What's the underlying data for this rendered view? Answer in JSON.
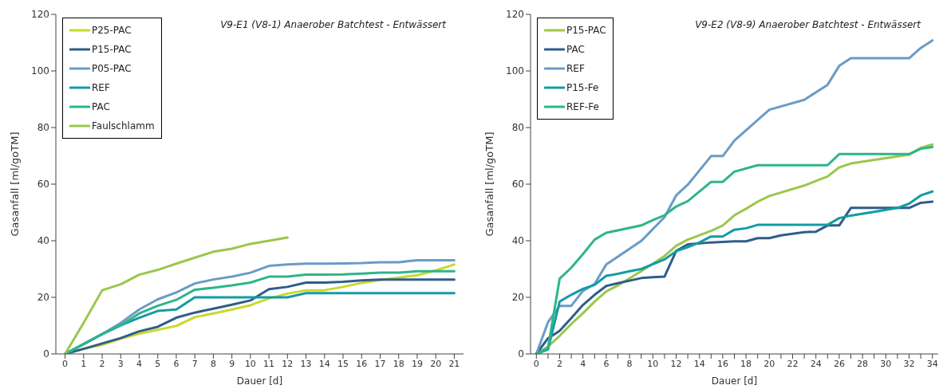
{
  "chart_data": [
    {
      "type": "line",
      "title": "V9-E1 (V8-1) Anaerober Batchtest - Entwässert",
      "xlabel": "Dauer [d]",
      "ylabel": "Gasanfall [ml/goTM]",
      "x": [
        0,
        1,
        2,
        3,
        4,
        5,
        6,
        7,
        8,
        9,
        10,
        11,
        12,
        13,
        14,
        15,
        16,
        17,
        18,
        19,
        20,
        21
      ],
      "xlim": [
        -0.5,
        21.5
      ],
      "xticks": [
        0,
        1,
        2,
        3,
        4,
        5,
        6,
        7,
        8,
        9,
        10,
        11,
        12,
        13,
        14,
        15,
        16,
        17,
        18,
        19,
        20,
        21
      ],
      "ylim": [
        0,
        120
      ],
      "yticks": [
        0,
        20,
        40,
        60,
        80,
        100,
        120
      ],
      "legend": "top left",
      "grid": false,
      "marker": "none",
      "line_style": "solid",
      "series": [
        {
          "name": "P25-PAC",
          "color": "#c9d92b",
          "values": [
            0,
            1.8,
            3.2,
            5.4,
            7.2,
            8.5,
            9.9,
            13,
            14.3,
            15.7,
            17.2,
            19.6,
            21.3,
            22.5,
            22.5,
            23.7,
            25.1,
            26.1,
            27,
            27.8,
            29.5,
            31.6
          ]
        },
        {
          "name": "P15-PAC",
          "color": "#2f5d8a",
          "values": [
            0,
            1.8,
            3.7,
            5.6,
            8,
            9.6,
            12.8,
            14.6,
            16,
            17.4,
            18.9,
            22.9,
            23.7,
            25.2,
            25.2,
            25.5,
            26,
            26.3,
            26.3,
            26.3,
            26.3,
            26.3
          ]
        },
        {
          "name": "P05-PAC",
          "color": "#6b9bc7",
          "values": [
            0,
            3.5,
            7,
            10.9,
            15.7,
            19.3,
            21.7,
            24.9,
            26.3,
            27.3,
            28.7,
            31.1,
            31.6,
            31.9,
            31.9,
            32,
            32.1,
            32.4,
            32.4,
            33.1,
            33.1,
            33.1
          ]
        },
        {
          "name": "REF",
          "color": "#149ba3",
          "values": [
            0,
            3.5,
            7,
            10.1,
            12.8,
            15.2,
            15.7,
            20,
            20,
            20,
            20,
            20,
            20,
            21.5,
            21.5,
            21.5,
            21.5,
            21.5,
            21.5,
            21.5,
            21.5,
            21.5
          ]
        },
        {
          "name": "PAC",
          "color": "#2db58a",
          "values": [
            0,
            3.5,
            7,
            10.1,
            14.3,
            17,
            19.1,
            22.7,
            23.4,
            24.2,
            25.2,
            27.3,
            27.3,
            28,
            28,
            28.1,
            28.4,
            28.7,
            28.7,
            29.2,
            29.2,
            29.2
          ]
        },
        {
          "name": "Faulschlamm",
          "color": "#9bc74b",
          "values": [
            0,
            11,
            22.5,
            24.6,
            28,
            29.7,
            31.9,
            34,
            36.1,
            37.2,
            38.9,
            40,
            41.1,
            null,
            null,
            null,
            null,
            null,
            null,
            null,
            null,
            null
          ]
        }
      ]
    },
    {
      "type": "line",
      "title": "V9-E2 (V8-9) Anaerober Batchtest - Entwässert",
      "xlabel": "Dauer [d]",
      "ylabel": "Gasanfall [ml/goTM]",
      "xlim": [
        -0.5,
        34.5
      ],
      "xticks": [
        0,
        {
          "value": 1,
          "label": null
        },
        2,
        {
          "value": 3,
          "label": null
        },
        4,
        {
          "value": 5,
          "label": null
        },
        6,
        {
          "value": 7,
          "label": null
        },
        8,
        {
          "value": 9,
          "label": null
        },
        10,
        {
          "value": 11,
          "label": null
        },
        12,
        {
          "value": 13,
          "label": null
        },
        14,
        {
          "value": 15,
          "label": null
        },
        16,
        {
          "value": 17,
          "label": null
        },
        18,
        {
          "value": 19,
          "label": null
        },
        20,
        {
          "value": 21,
          "label": null
        },
        22,
        {
          "value": 23,
          "label": null
        },
        24,
        {
          "value": 25,
          "label": null
        },
        26,
        {
          "value": 27,
          "label": null
        },
        28,
        {
          "value": 29,
          "label": null
        },
        30,
        {
          "value": 31,
          "label": null
        },
        32,
        {
          "value": 33,
          "label": null
        },
        34
      ],
      "ylim": [
        0,
        120
      ],
      "yticks": [
        0,
        20,
        40,
        60,
        80,
        100,
        120
      ],
      "legend": "top left",
      "grid": false,
      "marker": "none",
      "line_style": "solid",
      "series": [
        {
          "name": "P15-PAC",
          "color": "#9bc74b",
          "x": [
            0,
            1,
            2,
            3,
            4,
            5,
            6,
            7,
            9,
            11,
            12,
            13,
            15,
            16,
            17,
            18,
            19,
            20,
            23,
            25,
            26,
            27,
            32,
            33,
            34
          ],
          "values": [
            0,
            2.6,
            6.4,
            10.6,
            14.4,
            18.5,
            22.1,
            24.2,
            29.2,
            34.6,
            38.2,
            40.4,
            43.5,
            45.4,
            49,
            51.3,
            53.8,
            55.8,
            59.5,
            62.7,
            65.9,
            67.3,
            70.4,
            72.8,
            74
          ]
        },
        {
          "name": "PAC",
          "color": "#2f5d8a",
          "x": [
            0,
            1,
            2,
            3,
            4,
            5,
            6,
            7,
            9,
            10,
            11,
            12,
            13,
            15,
            17,
            18,
            19,
            20,
            21,
            23,
            24,
            25,
            26,
            27,
            32,
            33,
            34
          ],
          "values": [
            0,
            5.5,
            8.2,
            12.7,
            17.3,
            20.9,
            24,
            25,
            26.8,
            27.1,
            27.3,
            36.4,
            38.7,
            39.4,
            39.8,
            39.8,
            40.9,
            40.9,
            41.9,
            43,
            43.2,
            45.4,
            45.4,
            51.6,
            51.6,
            53.4,
            53.8
          ]
        },
        {
          "name": "REF",
          "color": "#6b9bc7",
          "x": [
            0,
            1,
            2,
            3,
            4,
            5,
            6,
            9,
            11,
            12,
            13,
            15,
            16,
            17,
            20,
            23,
            25,
            26,
            27,
            32,
            33,
            34
          ],
          "values": [
            0,
            11.2,
            17,
            17,
            22.3,
            24.7,
            31.6,
            39.9,
            48.3,
            56,
            59.8,
            69.9,
            69.9,
            75.4,
            86.3,
            89.8,
            95.1,
            101.8,
            104.5,
            104.5,
            108.1,
            110.8
          ]
        },
        {
          "name": "P15-Fe",
          "color": "#149ba3",
          "x": [
            0,
            1,
            2,
            3,
            4,
            5,
            6,
            7,
            8,
            9,
            11,
            12,
            13,
            14,
            15,
            16,
            17,
            18,
            19,
            25,
            26,
            27,
            29,
            31,
            32,
            33,
            34
          ],
          "values": [
            0,
            1.6,
            18.5,
            20.9,
            23,
            24.4,
            27.6,
            28.3,
            29.2,
            30,
            33.4,
            36.3,
            37.7,
            39.4,
            41.5,
            41.5,
            43.9,
            44.4,
            45.6,
            45.6,
            48,
            48.9,
            50.2,
            51.6,
            53.1,
            56,
            57.4
          ]
        },
        {
          "name": "REF-Fe",
          "color": "#2db58a",
          "x": [
            0,
            1,
            2,
            3,
            4,
            5,
            6,
            9,
            10,
            11,
            12,
            13,
            15,
            16,
            17,
            19,
            25,
            26,
            32,
            33,
            34
          ],
          "values": [
            0,
            2.1,
            26.6,
            30.5,
            35.3,
            40.4,
            42.8,
            45.4,
            47.3,
            49,
            52.1,
            54,
            60.8,
            60.8,
            64.4,
            66.7,
            66.7,
            70.6,
            70.6,
            72.5,
            73.1
          ]
        }
      ]
    }
  ]
}
